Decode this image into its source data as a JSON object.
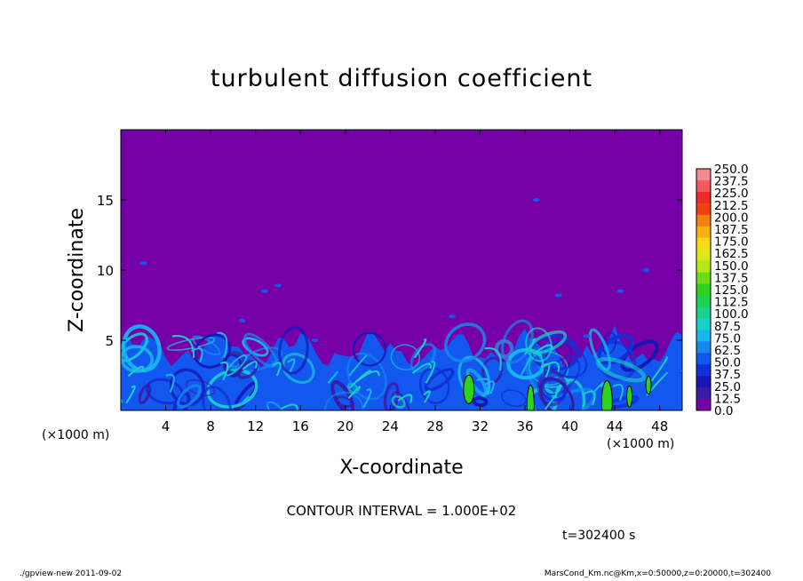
{
  "chart_data": {
    "type": "heatmap",
    "title": "turbulent diffusion coefficient",
    "xlabel": "X-coordinate",
    "ylabel": "Z-coordinate",
    "x_unit": "(×1000 m)",
    "y_unit": "(×1000 m)",
    "xlim": [
      0,
      50
    ],
    "ylim": [
      0,
      20
    ],
    "x_ticks": [
      4,
      8,
      12,
      16,
      20,
      24,
      28,
      32,
      36,
      40,
      44,
      48
    ],
    "y_ticks": [
      5,
      10,
      15
    ],
    "colorbar": {
      "levels": [
        "250.0",
        "237.5",
        "225.0",
        "212.5",
        "200.0",
        "187.5",
        "175.0",
        "162.5",
        "150.0",
        "137.5",
        "125.0",
        "112.5",
        "100.0",
        "87.5",
        "75.0",
        "62.5",
        "50.0",
        "37.5",
        "25.0",
        "12.5",
        "0.0"
      ],
      "colors": [
        "#f48a90",
        "#f25a60",
        "#ee2a2a",
        "#ee4414",
        "#f08010",
        "#f8b010",
        "#f8d818",
        "#dce81c",
        "#b0e81a",
        "#6ade18",
        "#2ed21c",
        "#20d050",
        "#1ccf8e",
        "#18cfcb",
        "#18b8ee",
        "#1688ee",
        "#1258ee",
        "#1030d8",
        "#1616b4",
        "#3a1aa6",
        "#7600a8"
      ]
    },
    "background_value": 0.0,
    "contour_interval": "CONTOUR INTERVAL = 1.000E+02",
    "turbulent_layer_top_km": 5.5,
    "grid": false,
    "legend": "right"
  },
  "time_label": "t=302400 s",
  "footer_left": "./gpview-new   2011-09-02",
  "footer_right": "MarsCond_Km.nc@Km,x=0:50000,z=0:20000,t=302400"
}
